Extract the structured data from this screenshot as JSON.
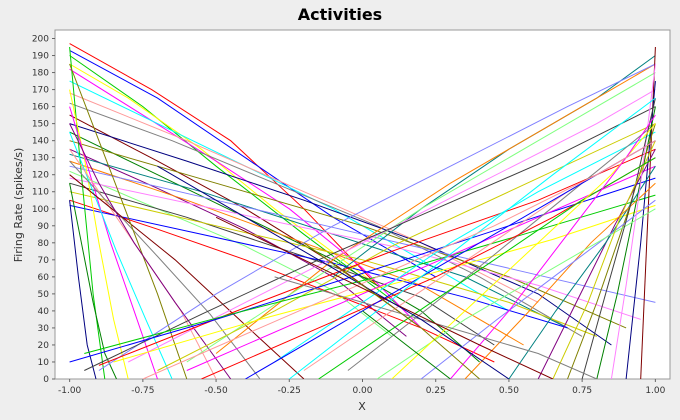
{
  "chart_data": {
    "type": "line",
    "title": "Activities",
    "xlabel": "X",
    "ylabel": "Firing Rate (spikes/s)",
    "xlim": [
      -1.05,
      1.05
    ],
    "ylim": [
      0,
      205
    ],
    "x_ticks": [
      "-1.00",
      "-0.75",
      "-0.50",
      "-0.25",
      "0.00",
      "0.25",
      "0.50",
      "0.75",
      "1.00"
    ],
    "x_tick_values": [
      -1.0,
      -0.75,
      -0.5,
      -0.25,
      0.0,
      0.25,
      0.5,
      0.75,
      1.0
    ],
    "y_ticks": [
      "0",
      "10",
      "20",
      "30",
      "40",
      "50",
      "60",
      "70",
      "80",
      "90",
      "100",
      "110",
      "120",
      "130",
      "140",
      "150",
      "160",
      "170",
      "180",
      "190",
      "200"
    ],
    "y_tick_values": [
      0,
      10,
      20,
      30,
      40,
      50,
      60,
      70,
      80,
      90,
      100,
      110,
      120,
      130,
      140,
      150,
      160,
      170,
      180,
      190,
      200
    ],
    "grid": false,
    "legend": "none",
    "background": "#ffffff",
    "series_colors": [
      "#ff0000",
      "#0000ff",
      "#00cc00",
      "#ffff00",
      "#ff00ff",
      "#00ffff",
      "#ff9999",
      "#808080",
      "#800000",
      "#000080",
      "#008000",
      "#808000",
      "#800080",
      "#008080",
      "#ff8000",
      "#8080ff",
      "#80ff80",
      "#ff80ff",
      "#404040",
      "#cccc00"
    ],
    "series": [
      {
        "x": [
          -1.0,
          -0.72,
          -0.45,
          -0.2,
          0.05
        ],
        "y": [
          197,
          170,
          140,
          100,
          55
        ]
      },
      {
        "x": [
          -1.0,
          -0.7,
          -0.4,
          -0.1,
          0.25
        ],
        "y": [
          193,
          165,
          130,
          95,
          60
        ]
      },
      {
        "x": [
          -1.0,
          -0.75,
          -0.5,
          -0.2,
          0.15
        ],
        "y": [
          190,
          160,
          125,
          85,
          40
        ]
      },
      {
        "x": [
          -1.0,
          -0.8,
          -0.55,
          -0.3,
          0.05
        ],
        "y": [
          185,
          165,
          135,
          100,
          55
        ]
      },
      {
        "x": [
          -1.0,
          -0.75,
          -0.5,
          -0.25,
          0.0,
          0.2
        ],
        "y": [
          182,
          155,
          128,
          100,
          65,
          30
        ]
      },
      {
        "x": [
          -1.0,
          -0.7,
          -0.4,
          -0.1,
          0.2,
          0.5
        ],
        "y": [
          175,
          150,
          125,
          100,
          70,
          40
        ]
      },
      {
        "x": [
          -1.0,
          -0.6,
          -0.2,
          0.2,
          0.6
        ],
        "y": [
          168,
          140,
          110,
          80,
          45
        ]
      },
      {
        "x": [
          -1.0,
          -0.65,
          -0.3,
          0.05,
          0.4,
          0.75
        ],
        "y": [
          162,
          140,
          115,
          90,
          60,
          25
        ]
      },
      {
        "x": [
          -1.0,
          -0.7,
          -0.4,
          -0.1,
          0.2
        ],
        "y": [
          155,
          128,
          100,
          68,
          30
        ]
      },
      {
        "x": [
          -1.0,
          -0.6,
          -0.2,
          0.2,
          0.6,
          0.85
        ],
        "y": [
          150,
          128,
          105,
          80,
          50,
          20
        ]
      },
      {
        "x": [
          -1.0,
          -0.7,
          -0.4,
          -0.1,
          0.2,
          0.4
        ],
        "y": [
          145,
          120,
          95,
          70,
          40,
          10
        ]
      },
      {
        "x": [
          -1.0,
          -0.5,
          0.0,
          0.5,
          0.9
        ],
        "y": [
          140,
          115,
          90,
          60,
          30
        ]
      },
      {
        "x": [
          -1.0,
          -0.7,
          -0.4,
          -0.1,
          0.15
        ],
        "y": [
          135,
          112,
          88,
          60,
          25
        ]
      },
      {
        "x": [
          -1.0,
          -0.55,
          -0.1,
          0.35,
          0.7
        ],
        "y": [
          132,
          110,
          85,
          60,
          30
        ]
      },
      {
        "x": [
          -1.0,
          -0.6,
          -0.2,
          0.2,
          0.55
        ],
        "y": [
          128,
          105,
          80,
          55,
          20
        ]
      },
      {
        "x": [
          -1.0,
          -0.5,
          0.0,
          0.5,
          1.0
        ],
        "y": [
          125,
          105,
          85,
          65,
          45
        ]
      },
      {
        "x": [
          -1.0,
          -0.7,
          -0.4,
          -0.1,
          0.1
        ],
        "y": [
          122,
          100,
          78,
          52,
          25
        ]
      },
      {
        "x": [
          -1.0,
          -0.45,
          0.1,
          0.6,
          0.95
        ],
        "y": [
          118,
          98,
          78,
          55,
          35
        ]
      },
      {
        "x": [
          -1.0,
          -0.6,
          -0.2,
          0.2,
          0.45
        ],
        "y": [
          115,
          95,
          72,
          48,
          20
        ]
      },
      {
        "x": [
          -1.0,
          -0.5,
          0.0,
          0.5,
          0.8
        ],
        "y": [
          110,
          90,
          70,
          45,
          25
        ]
      },
      {
        "x": [
          -1.0,
          -0.7,
          -0.4,
          -0.1,
          0.2,
          0.45
        ],
        "y": [
          105,
          88,
          70,
          50,
          30,
          10
        ]
      },
      {
        "x": [
          -1.0,
          -0.55,
          -0.1,
          0.35,
          0.7
        ],
        "y": [
          102,
          85,
          68,
          48,
          30
        ]
      },
      {
        "x": [
          -1.0,
          -0.96,
          -0.92,
          -0.88
        ],
        "y": [
          195,
          120,
          50,
          0
        ]
      },
      {
        "x": [
          -1.0,
          -0.95,
          -0.9,
          -0.85,
          -0.8
        ],
        "y": [
          170,
          130,
          80,
          35,
          0
        ]
      },
      {
        "x": [
          -1.0,
          -0.93,
          -0.86,
          -0.78,
          -0.7
        ],
        "y": [
          160,
          120,
          80,
          40,
          0
        ]
      },
      {
        "x": [
          -1.0,
          -0.92,
          -0.84,
          -0.74,
          -0.65
        ],
        "y": [
          145,
          110,
          75,
          35,
          0
        ]
      },
      {
        "x": [
          -1.0,
          -0.88,
          -0.76,
          -0.62,
          -0.5
        ],
        "y": [
          135,
          105,
          75,
          40,
          0
        ]
      },
      {
        "x": [
          -1.0,
          -0.85,
          -0.7,
          -0.52,
          -0.35
        ],
        "y": [
          128,
          100,
          72,
          38,
          0
        ]
      },
      {
        "x": [
          -1.0,
          -0.82,
          -0.64,
          -0.44,
          -0.2
        ],
        "y": [
          120,
          95,
          70,
          38,
          0
        ]
      },
      {
        "x": [
          -1.0,
          -0.97,
          -0.94,
          -0.91
        ],
        "y": [
          105,
          60,
          20,
          0
        ]
      },
      {
        "x": [
          -1.0,
          -0.96,
          -0.92,
          -0.88,
          -0.84
        ],
        "y": [
          115,
          80,
          45,
          15,
          0
        ]
      },
      {
        "x": [
          -1.0,
          -0.9,
          -0.8,
          -0.7,
          -0.6
        ],
        "y": [
          185,
          140,
          95,
          50,
          0
        ]
      },
      {
        "x": [
          -1.0,
          -0.9,
          -0.78,
          -0.64,
          -0.45
        ],
        "y": [
          150,
          115,
          80,
          45,
          0
        ]
      },
      {
        "x": [
          -0.1,
          0.2,
          0.5,
          0.8,
          1.0
        ],
        "y": [
          60,
          100,
          135,
          165,
          190
        ]
      },
      {
        "x": [
          -0.5,
          -0.1,
          0.3,
          0.7,
          1.0
        ],
        "y": [
          15,
          70,
          115,
          155,
          185
        ]
      },
      {
        "x": [
          -0.9,
          -0.5,
          -0.1,
          0.3,
          0.7,
          1.0
        ],
        "y": [
          5,
          50,
          90,
          125,
          160,
          185
        ]
      },
      {
        "x": [
          -0.6,
          -0.2,
          0.2,
          0.6,
          1.0
        ],
        "y": [
          10,
          55,
          100,
          140,
          180
        ]
      },
      {
        "x": [
          -0.8,
          -0.4,
          0.0,
          0.4,
          0.8,
          1.0
        ],
        "y": [
          10,
          45,
          80,
          115,
          150,
          170
        ]
      },
      {
        "x": [
          -0.95,
          -0.55,
          -0.15,
          0.25,
          0.65,
          1.0
        ],
        "y": [
          5,
          38,
          70,
          100,
          130,
          160
        ]
      },
      {
        "x": [
          -0.7,
          -0.3,
          0.1,
          0.5,
          1.0
        ],
        "y": [
          5,
          40,
          78,
          110,
          150
        ]
      },
      {
        "x": [
          -0.9,
          -0.4,
          0.1,
          0.6,
          1.0
        ],
        "y": [
          8,
          42,
          75,
          105,
          135
        ]
      },
      {
        "x": [
          -1.0,
          -0.5,
          0.0,
          0.5,
          1.0
        ],
        "y": [
          10,
          35,
          62,
          90,
          118
        ]
      },
      {
        "x": [
          -0.95,
          -0.45,
          0.05,
          0.55,
          1.0
        ],
        "y": [
          15,
          38,
          60,
          85,
          108
        ]
      },
      {
        "x": [
          -0.85,
          -0.35,
          0.15,
          0.65,
          1.0
        ],
        "y": [
          10,
          35,
          58,
          82,
          102
        ]
      },
      {
        "x": [
          -0.6,
          -0.2,
          0.2,
          0.6,
          1.0
        ],
        "y": [
          5,
          35,
          65,
          95,
          125
        ]
      },
      {
        "x": [
          -0.3,
          0.0,
          0.3,
          0.6,
          1.0
        ],
        "y": [
          10,
          45,
          80,
          110,
          145
        ]
      },
      {
        "x": [
          -0.2,
          0.1,
          0.4,
          0.7,
          1.0
        ],
        "y": [
          5,
          40,
          75,
          110,
          140
        ]
      },
      {
        "x": [
          -0.05,
          0.25,
          0.5,
          0.75,
          1.0
        ],
        "y": [
          5,
          45,
          80,
          115,
          150
        ]
      },
      {
        "x": [
          0.95,
          1.0
        ],
        "y": [
          0,
          195
        ]
      },
      {
        "x": [
          0.9,
          0.95,
          1.0
        ],
        "y": [
          0,
          80,
          175
        ]
      },
      {
        "x": [
          0.8,
          0.87,
          0.93,
          1.0
        ],
        "y": [
          0,
          50,
          100,
          160
        ]
      },
      {
        "x": [
          0.7,
          0.8,
          0.9,
          1.0
        ],
        "y": [
          0,
          45,
          95,
          150
        ]
      },
      {
        "x": [
          0.6,
          0.73,
          0.86,
          1.0
        ],
        "y": [
          0,
          45,
          90,
          135
        ]
      },
      {
        "x": [
          0.5,
          0.66,
          0.83,
          1.0
        ],
        "y": [
          0,
          40,
          80,
          125
        ]
      },
      {
        "x": [
          0.35,
          0.57,
          0.78,
          1.0
        ],
        "y": [
          0,
          40,
          80,
          115
        ]
      },
      {
        "x": [
          0.2,
          0.46,
          0.73,
          1.0
        ],
        "y": [
          0,
          35,
          70,
          105
        ]
      },
      {
        "x": [
          0.05,
          0.35,
          0.65,
          1.0
        ],
        "y": [
          0,
          35,
          65,
          100
        ]
      },
      {
        "x": [
          0.85,
          0.9,
          0.95,
          1.0
        ],
        "y": [
          0,
          55,
          115,
          185
        ]
      },
      {
        "x": [
          0.75,
          0.83,
          0.92,
          1.0
        ],
        "y": [
          0,
          50,
          105,
          165
        ]
      },
      {
        "x": [
          0.65,
          0.77,
          0.88,
          1.0
        ],
        "y": [
          0,
          45,
          95,
          140
        ]
      },
      {
        "x": [
          -0.55,
          -0.15,
          0.25,
          0.65,
          1.0
        ],
        "y": [
          0,
          30,
          60,
          95,
          130
        ]
      },
      {
        "x": [
          -0.4,
          -0.05,
          0.3,
          0.65,
          1.0
        ],
        "y": [
          0,
          35,
          70,
          105,
          140
        ]
      },
      {
        "x": [
          -0.15,
          0.15,
          0.45,
          0.75,
          1.0
        ],
        "y": [
          0,
          35,
          70,
          105,
          130
        ]
      },
      {
        "x": [
          0.1,
          0.35,
          0.6,
          0.85,
          1.0
        ],
        "y": [
          0,
          40,
          80,
          120,
          150
        ]
      },
      {
        "x": [
          0.3,
          0.5,
          0.7,
          0.9,
          1.0
        ],
        "y": [
          0,
          40,
          85,
          130,
          155
        ]
      },
      {
        "x": [
          -0.25,
          0.05,
          0.35,
          0.65,
          1.0
        ],
        "y": [
          0,
          40,
          80,
          120,
          165
        ]
      },
      {
        "x": [
          -0.75,
          -0.35,
          0.05,
          0.45,
          0.8,
          1.0
        ],
        "y": [
          0,
          30,
          60,
          90,
          120,
          140
        ]
      },
      {
        "x": [
          -0.3,
          0.0,
          0.3,
          0.6,
          0.8
        ],
        "y": [
          60,
          45,
          30,
          15,
          0
        ]
      },
      {
        "x": [
          -0.5,
          -0.2,
          0.1,
          0.4,
          0.65
        ],
        "y": [
          95,
          70,
          45,
          20,
          0
        ]
      },
      {
        "x": [
          -0.7,
          -0.4,
          -0.1,
          0.2,
          0.5
        ],
        "y": [
          125,
          95,
          65,
          35,
          0
        ]
      },
      {
        "x": [
          0.0,
          0.15,
          0.3
        ],
        "y": [
          40,
          20,
          0
        ]
      },
      {
        "x": [
          -0.2,
          0.0,
          0.2,
          0.4
        ],
        "y": [
          80,
          55,
          30,
          0
        ]
      }
    ]
  }
}
